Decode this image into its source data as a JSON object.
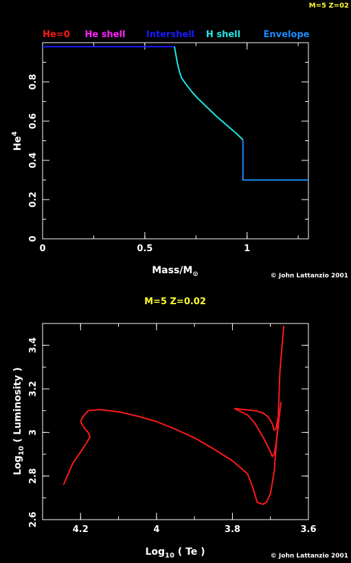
{
  "corner_label": "M=5 Z=02",
  "charts": [
    {
      "type": "line",
      "legend": [
        {
          "label": "He=0",
          "color": "#ff1a1a"
        },
        {
          "label": "He shell",
          "color": "#ff22ff"
        },
        {
          "label": "Intershell",
          "color": "#1a1aff"
        },
        {
          "label": "H shell",
          "color": "#22e6e6"
        },
        {
          "label": "Envelope",
          "color": "#1a8cff"
        }
      ],
      "legend_position": "top",
      "xlabel": "Mass/M",
      "xlabel_symbol": "⊙",
      "ylabel": "He",
      "ylabel_sup": "4",
      "xlim": [
        0,
        1.3
      ],
      "ylim": [
        0,
        1.0
      ],
      "xticks": [
        {
          "v": 0,
          "label": "0"
        },
        {
          "v": 0.5,
          "label": "0.5"
        },
        {
          "v": 1,
          "label": "1"
        }
      ],
      "yticks": [
        {
          "v": 0,
          "label": "0"
        },
        {
          "v": 0.2,
          "label": "0.2"
        },
        {
          "v": 0.4,
          "label": "0.4"
        },
        {
          "v": 0.6,
          "label": "0.6"
        },
        {
          "v": 0.8,
          "label": "0.8"
        }
      ],
      "credit": "© John Lattanzio 2001",
      "series": [
        {
          "color": "#1a1aff",
          "x": [
            0,
            0.645
          ],
          "y": [
            0.98,
            0.98
          ]
        },
        {
          "color": "#22e6e6",
          "x": [
            0.645,
            0.65,
            0.66,
            0.67,
            0.68,
            0.7,
            0.73,
            0.76,
            0.8,
            0.85,
            0.9,
            0.95,
            0.98
          ],
          "y": [
            0.98,
            0.95,
            0.89,
            0.85,
            0.82,
            0.79,
            0.75,
            0.715,
            0.675,
            0.625,
            0.58,
            0.535,
            0.505
          ]
        },
        {
          "color": "#1a8cff",
          "x": [
            0.98,
            0.98,
            1.3
          ],
          "y": [
            0.505,
            0.3,
            0.3
          ]
        }
      ]
    },
    {
      "type": "line",
      "title": "M=5 Z=0.02",
      "xlabel": "Log",
      "xlabel_sub": "10",
      "xlabel_rest": " ( Te )",
      "ylabel": "Log",
      "ylabel_sub": "10",
      "ylabel_rest": " ( Luminosity )",
      "xlim": [
        4.3,
        3.6
      ],
      "ylim": [
        2.6,
        3.5
      ],
      "xticks": [
        {
          "v": 4.2,
          "label": "4.2"
        },
        {
          "v": 4.0,
          "label": "4"
        },
        {
          "v": 3.8,
          "label": "3.8"
        },
        {
          "v": 3.6,
          "label": "3.6"
        }
      ],
      "yticks": [
        {
          "v": 2.6,
          "label": "2.6"
        },
        {
          "v": 2.8,
          "label": "2.8"
        },
        {
          "v": 3.0,
          "label": "3"
        },
        {
          "v": 3.2,
          "label": "3.2"
        },
        {
          "v": 3.4,
          "label": "3.4"
        }
      ],
      "credit": "© John Lattanzio 2001",
      "series": [
        {
          "color": "#ff1a1a",
          "x": [
            4.245,
            4.235,
            4.22,
            4.2,
            4.185,
            4.175,
            4.18,
            4.19,
            4.2,
            4.195,
            4.18,
            4.15,
            4.1,
            4.05,
            4.0,
            3.95,
            3.9,
            3.85,
            3.8,
            3.76,
            3.745,
            3.735,
            3.72,
            3.71,
            3.7,
            3.69,
            3.68,
            3.675,
            3.665
          ],
          "y": [
            2.76,
            2.8,
            2.86,
            2.91,
            2.95,
            2.98,
            3.0,
            3.02,
            3.05,
            3.07,
            3.1,
            3.105,
            3.095,
            3.075,
            3.05,
            3.015,
            2.975,
            2.925,
            2.87,
            2.81,
            2.74,
            2.68,
            2.67,
            2.68,
            2.72,
            2.82,
            3.05,
            3.28,
            3.49
          ]
        },
        {
          "color": "#ff1a1a",
          "x": [
            3.795,
            3.76,
            3.74,
            3.72,
            3.705,
            3.695,
            3.69,
            3.685,
            3.68,
            3.675,
            3.672
          ],
          "y": [
            3.11,
            3.08,
            3.04,
            2.98,
            2.93,
            2.89,
            2.9,
            2.95,
            3.02,
            3.1,
            3.14
          ]
        },
        {
          "color": "#ff1a1a",
          "x": [
            3.795,
            3.77,
            3.74,
            3.72,
            3.705,
            3.695,
            3.69,
            3.685,
            3.68
          ],
          "y": [
            3.11,
            3.105,
            3.1,
            3.09,
            3.07,
            3.04,
            3.01,
            3.02,
            3.07
          ]
        }
      ]
    }
  ]
}
